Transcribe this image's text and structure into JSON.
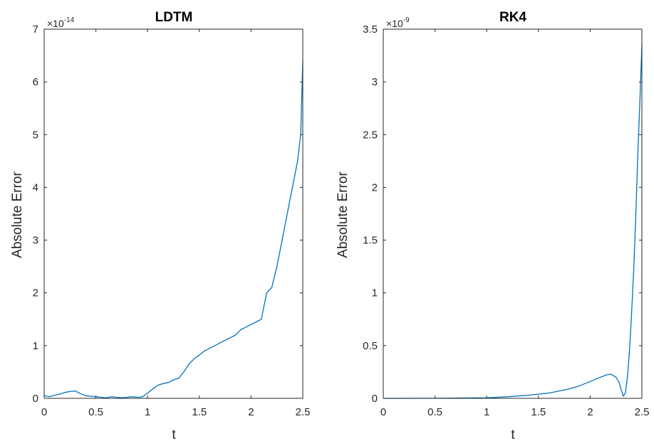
{
  "chart_data": [
    {
      "type": "line",
      "title": "LDTM",
      "xlabel": "t",
      "ylabel": "Absolute Error",
      "y_exponent_label": {
        "prefix": "×10",
        "exponent": "-14"
      },
      "xlim": [
        0,
        2.5
      ],
      "ylim": [
        0,
        7
      ],
      "xticks": [
        0,
        0.5,
        1,
        1.5,
        2,
        2.5
      ],
      "xtick_labels": [
        "0",
        "0.5",
        "1",
        "1.5",
        "2",
        "2.5"
      ],
      "yticks": [
        0,
        1,
        2,
        3,
        4,
        5,
        6,
        7
      ],
      "ytick_labels": [
        "0",
        "1",
        "2",
        "3",
        "4",
        "5",
        "6",
        "7"
      ],
      "grid": false,
      "line_color": "#0072BD",
      "series": [
        {
          "x": [
            0,
            0.05,
            0.1,
            0.15,
            0.2,
            0.25,
            0.3,
            0.35,
            0.4,
            0.45,
            0.5,
            0.55,
            0.6,
            0.65,
            0.7,
            0.75,
            0.8,
            0.85,
            0.9,
            0.95,
            1.0,
            1.05,
            1.1,
            1.15,
            1.2,
            1.25,
            1.3,
            1.35,
            1.4,
            1.45,
            1.5,
            1.55,
            1.6,
            1.65,
            1.7,
            1.75,
            1.8,
            1.85,
            1.9,
            1.95,
            2.0,
            2.05,
            2.1,
            2.15,
            2.2,
            2.25,
            2.3,
            2.35,
            2.4,
            2.45,
            2.48,
            2.5
          ],
          "values": [
            0.05,
            0.03,
            0.06,
            0.08,
            0.11,
            0.13,
            0.14,
            0.09,
            0.05,
            0.04,
            0.03,
            0.02,
            0.01,
            0.03,
            0.02,
            0.01,
            0.02,
            0.03,
            0.02,
            0.03,
            0.1,
            0.18,
            0.25,
            0.28,
            0.3,
            0.35,
            0.38,
            0.5,
            0.65,
            0.75,
            0.82,
            0.9,
            0.95,
            1.0,
            1.05,
            1.1,
            1.15,
            1.2,
            1.3,
            1.35,
            1.4,
            1.45,
            1.5,
            2.0,
            2.1,
            2.5,
            3.0,
            3.5,
            4.0,
            4.5,
            5.0,
            6.4
          ]
        }
      ]
    },
    {
      "type": "line",
      "title": "RK4",
      "xlabel": "t",
      "ylabel": "Absolute Error",
      "y_exponent_label": {
        "prefix": "×10",
        "exponent": "-9"
      },
      "xlim": [
        0,
        2.5
      ],
      "ylim": [
        0,
        3.5
      ],
      "xticks": [
        0,
        0.5,
        1,
        1.5,
        2,
        2.5
      ],
      "xtick_labels": [
        "0",
        "0.5",
        "1",
        "1.5",
        "2",
        "2.5"
      ],
      "yticks": [
        0,
        0.5,
        1,
        1.5,
        2,
        2.5,
        3,
        3.5
      ],
      "ytick_labels": [
        "0",
        "0.5",
        "1",
        "1.5",
        "2",
        "2.5",
        "3",
        "3.5"
      ],
      "grid": false,
      "line_color": "#0072BD",
      "series": [
        {
          "x": [
            0,
            0.5,
            1.0,
            1.2,
            1.4,
            1.6,
            1.8,
            1.9,
            2.0,
            2.1,
            2.15,
            2.2,
            2.25,
            2.28,
            2.3,
            2.32,
            2.34,
            2.36,
            2.38,
            2.4,
            2.42,
            2.44,
            2.46,
            2.48,
            2.5
          ],
          "values": [
            0,
            0.001,
            0.005,
            0.015,
            0.03,
            0.05,
            0.09,
            0.12,
            0.16,
            0.2,
            0.22,
            0.23,
            0.2,
            0.15,
            0.08,
            0.02,
            0.05,
            0.2,
            0.45,
            0.8,
            1.2,
            1.7,
            2.3,
            2.8,
            3.35
          ]
        }
      ]
    }
  ]
}
